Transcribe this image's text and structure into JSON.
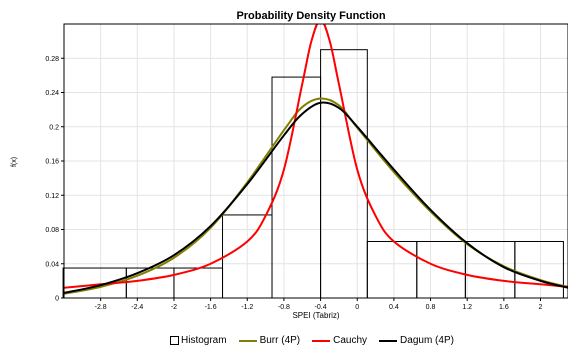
{
  "chart_data": {
    "type": "histogram-with-density-curves",
    "title": "Probability Density Function",
    "xlabel": "SPEI (Tabriz)",
    "ylabel": "f(x)",
    "xlim": [
      -3.2,
      2.3
    ],
    "ylim": [
      0,
      0.32
    ],
    "x_ticks": [
      -2.8,
      -2.4,
      -2,
      -1.6,
      -1.2,
      -0.8,
      -0.4,
      0,
      0.4,
      0.8,
      1.2,
      1.6,
      2
    ],
    "x_tick_labels": [
      "-2.8",
      "-2.4",
      "-2",
      "-1.6",
      "-1.2",
      "-0.8",
      "-0.4",
      "0",
      "0.4",
      "0.8",
      "1.2",
      "1.6",
      "2"
    ],
    "y_ticks": [
      0,
      0.04,
      0.08,
      0.12,
      0.16,
      0.2,
      0.24,
      0.28
    ],
    "y_tick_labels": [
      "0",
      "0.04",
      "0.08",
      "0.12",
      "0.16",
      "0.2",
      "0.24",
      "0.28"
    ],
    "grid": true,
    "legend_position": "bottom",
    "histogram": {
      "bin_edges": [
        -3.21,
        -2.52,
        -2.0,
        -1.47,
        -0.93,
        -0.4,
        0.11,
        0.65,
        1.18,
        1.72,
        2.25
      ],
      "densities": [
        0.035,
        0.035,
        0.035,
        0.097,
        0.258,
        0.29,
        0.066,
        0.066,
        0.066,
        0.066
      ]
    },
    "series": [
      {
        "name": "Burr (4P)",
        "color": "#808000",
        "x": [
          -3.2,
          -2.8,
          -2.4,
          -2.0,
          -1.6,
          -1.2,
          -0.8,
          -0.6,
          -0.4,
          -0.2,
          0.0,
          0.4,
          0.8,
          1.2,
          1.6,
          2.0,
          2.3
        ],
        "y": [
          0.005,
          0.013,
          0.026,
          0.047,
          0.082,
          0.135,
          0.196,
          0.223,
          0.233,
          0.225,
          0.199,
          0.147,
          0.101,
          0.063,
          0.037,
          0.021,
          0.013
        ]
      },
      {
        "name": "Cauchy",
        "color": "#ff0000",
        "x": [
          -3.2,
          -2.8,
          -2.4,
          -2.0,
          -1.6,
          -1.2,
          -1.0,
          -0.8,
          -0.6,
          -0.5,
          -0.4,
          -0.3,
          -0.2,
          0.0,
          0.2,
          0.4,
          0.8,
          1.2,
          1.6,
          2.0,
          2.3
        ],
        "y": [
          0.012,
          0.016,
          0.02,
          0.027,
          0.04,
          0.066,
          0.096,
          0.15,
          0.25,
          0.3,
          0.325,
          0.3,
          0.25,
          0.15,
          0.096,
          0.066,
          0.04,
          0.027,
          0.02,
          0.016,
          0.013
        ]
      },
      {
        "name": "Dagum (4P)",
        "color": "#000000",
        "x": [
          -3.2,
          -2.8,
          -2.4,
          -2.0,
          -1.6,
          -1.2,
          -0.8,
          -0.6,
          -0.4,
          -0.2,
          0.0,
          0.4,
          0.8,
          1.2,
          1.6,
          2.0,
          2.3
        ],
        "y": [
          0.006,
          0.015,
          0.029,
          0.05,
          0.084,
          0.133,
          0.19,
          0.215,
          0.228,
          0.222,
          0.2,
          0.15,
          0.103,
          0.064,
          0.036,
          0.02,
          0.012
        ]
      }
    ],
    "legend": [
      "Histogram",
      "Burr (4P)",
      "Cauchy",
      "Dagum (4P)"
    ]
  }
}
